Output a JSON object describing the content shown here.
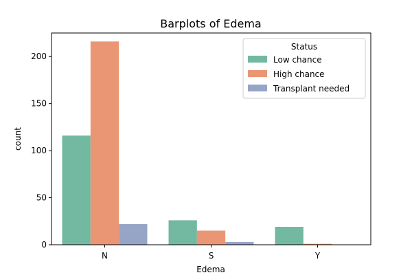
{
  "chart_data": {
    "type": "bar",
    "title": "Barplots of Edema",
    "xlabel": "Edema",
    "ylabel": "count",
    "categories": [
      "N",
      "S",
      "Y"
    ],
    "ylim": [
      0,
      225
    ],
    "yticks": [
      0,
      50,
      100,
      150,
      200
    ],
    "grid": false,
    "legend": {
      "title": "Status",
      "placement": "top-right"
    },
    "series": [
      {
        "name": "Low chance",
        "color": "#73b8a1",
        "values": [
          116,
          26,
          19
        ]
      },
      {
        "name": "High chance",
        "color": "#ea9675",
        "values": [
          216,
          15,
          1
        ]
      },
      {
        "name": "Transplant needed",
        "color": "#96a5c6",
        "values": [
          22,
          3,
          0
        ]
      }
    ]
  }
}
